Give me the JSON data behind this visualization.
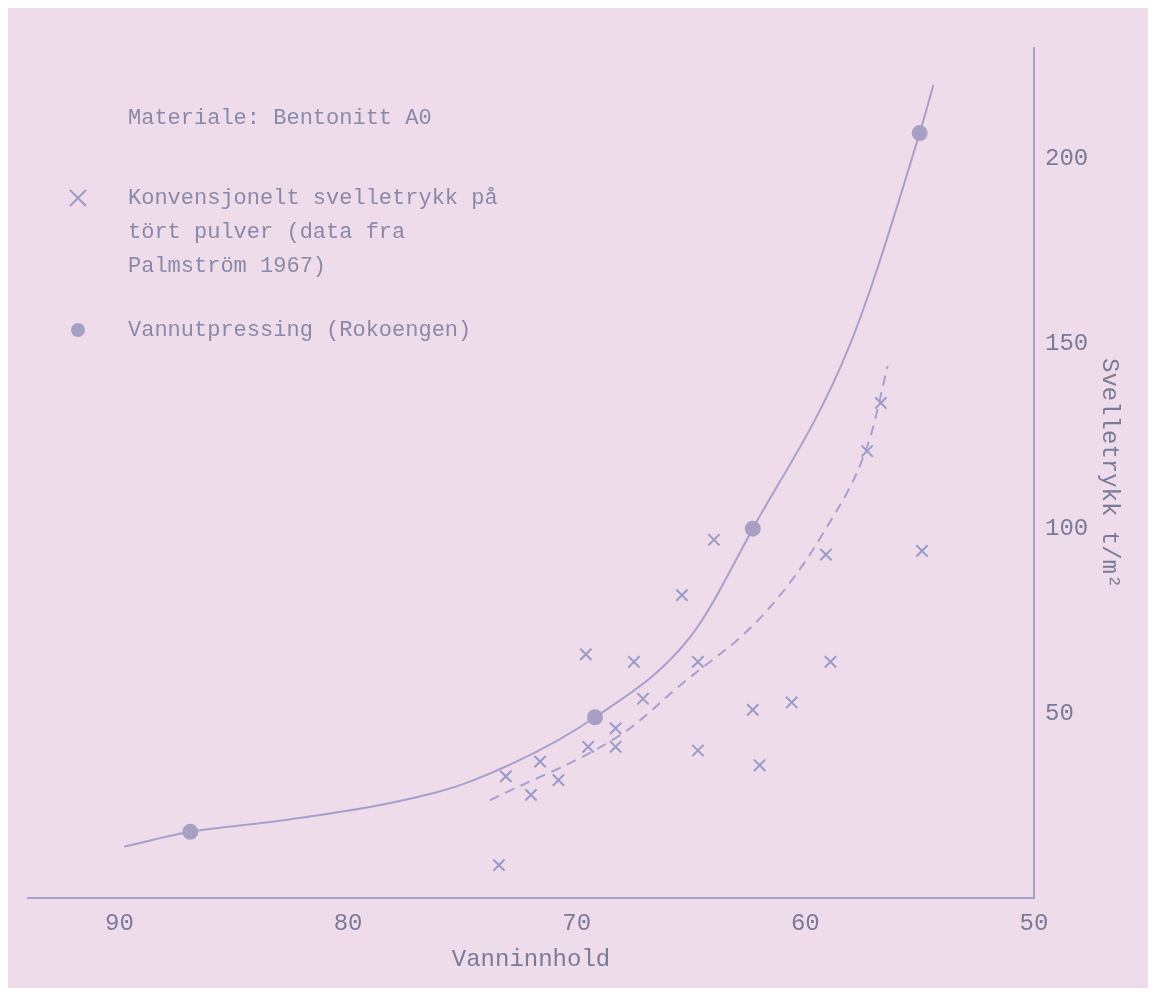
{
  "chart_data": {
    "type": "scatter",
    "title": "Materiale: Bentonitt A0",
    "xlabel": "Vanninnhold",
    "ylabel": "Svelletrykk t/m²",
    "xlim": [
      94,
      50
    ],
    "xticks": [
      90,
      80,
      70,
      60,
      50
    ],
    "ylim": [
      0,
      230
    ],
    "yticks": [
      50,
      100,
      150,
      200
    ],
    "legend": "top left",
    "grid": false,
    "series": [
      {
        "name": "Konvensjonelt svelletrykk på tört pulver (data fra Palmström 1967)",
        "marker": "cross",
        "color": "#9a9ac8",
        "x": [
          56.7,
          57.3,
          64.0,
          59.1,
          54.9,
          65.4,
          69.6,
          67.5,
          64.7,
          58.9,
          67.1,
          62.3,
          60.6,
          68.3,
          69.5,
          68.3,
          64.7,
          62.0,
          71.6,
          73.1,
          70.8,
          72.0,
          73.4
        ],
        "values": [
          134,
          121,
          97,
          93,
          94,
          82,
          66,
          64,
          64,
          64,
          54,
          51,
          53,
          46,
          41,
          41,
          40,
          36,
          37,
          33,
          32,
          28,
          9
        ]
      },
      {
        "name": "Vannutpressing (Rokoengen)",
        "marker": "circle",
        "color": "#a8a0c4",
        "x": [
          55.0,
          62.3,
          69.2,
          86.9
        ],
        "values": [
          207,
          100,
          49,
          18
        ]
      },
      {
        "type": "line",
        "marker": "none",
        "line_style": "solid",
        "color": "#a8a0cc",
        "x": [
          89.8,
          86.9,
          83.0,
          78.0,
          74.5,
          69.2,
          65.0,
          62.3,
          58.1,
          55.0,
          54.4
        ],
        "values": [
          14,
          18,
          21,
          26,
          32,
          49,
          71,
          100,
          149,
          207,
          220
        ]
      },
      {
        "type": "line",
        "marker": "none",
        "line_style": "dashed",
        "color": "#a8a0cc",
        "x": [
          73.8,
          67.9,
          65.6,
          61.8,
          59.2,
          57.2,
          56.4
        ],
        "values": [
          26.5,
          45,
          57,
          77,
          99,
          124,
          144
        ]
      }
    ]
  }
}
